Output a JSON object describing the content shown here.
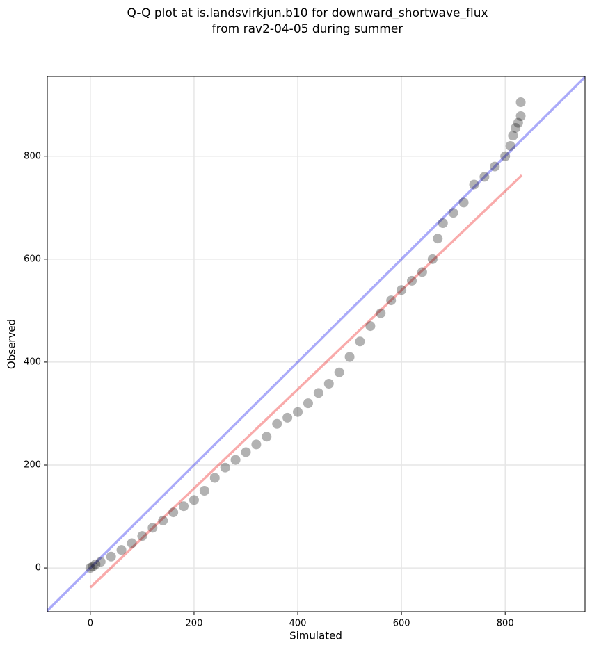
{
  "chart_data": {
    "type": "scatter",
    "title": [
      "Q-Q plot at is.landsvirkjun.b10 for downward_shortwave_flux",
      "from rav2-04-05 during summer"
    ],
    "xlabel": "Simulated",
    "ylabel": "Observed",
    "xlim": [
      -83,
      954
    ],
    "ylim": [
      -85,
      955
    ],
    "xticks": [
      0,
      200,
      400,
      600,
      800
    ],
    "yticks": [
      0,
      200,
      400,
      600,
      800
    ],
    "grid": true,
    "color": "#000000",
    "x": [
      0,
      5,
      10,
      20,
      40,
      60,
      80,
      100,
      120,
      140,
      160,
      180,
      200,
      220,
      240,
      260,
      280,
      300,
      320,
      340,
      360,
      380,
      400,
      420,
      440,
      460,
      480,
      500,
      520,
      540,
      560,
      580,
      600,
      620,
      640,
      660,
      670,
      680,
      700,
      720,
      740,
      760,
      780,
      800,
      810,
      815,
      820,
      825,
      830,
      830
    ],
    "values": [
      0,
      3,
      7,
      12,
      22,
      35,
      48,
      62,
      78,
      92,
      108,
      120,
      132,
      150,
      175,
      195,
      210,
      225,
      240,
      255,
      280,
      292,
      303,
      320,
      340,
      358,
      380,
      410,
      440,
      470,
      495,
      520,
      540,
      558,
      575,
      600,
      640,
      670,
      690,
      710,
      745,
      760,
      780,
      800,
      820,
      840,
      855,
      865,
      878,
      905
    ],
    "lines": [
      {
        "color": "#0000ee",
        "x": [
          -83,
          954
        ],
        "y": [
          -83,
          954
        ]
      },
      {
        "color": "#ee0000",
        "x": [
          0,
          832
        ],
        "y": [
          -38,
          763
        ]
      }
    ]
  }
}
